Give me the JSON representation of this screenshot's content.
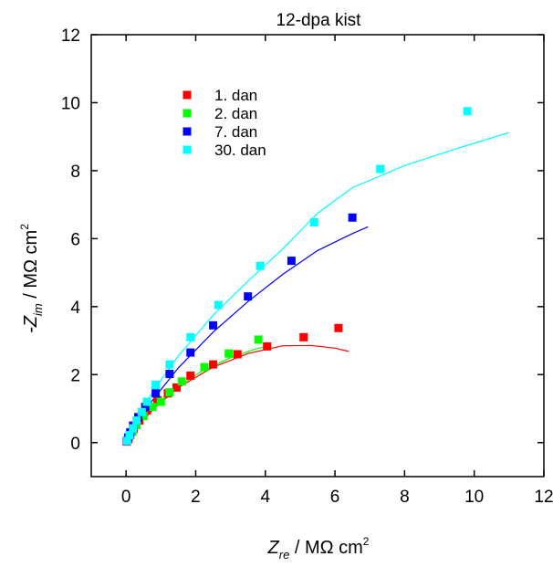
{
  "chart_data": {
    "type": "scatter",
    "title": "12-dpa kist",
    "xlabel": {
      "main": "Z",
      "sub": "re",
      "rest": " / MΩ cm",
      "sup": "2"
    },
    "ylabel": {
      "prefix": "-Z",
      "sub": "im",
      "rest": " / MΩ cm",
      "sup": "2"
    },
    "xlim": [
      -1,
      12
    ],
    "ylim": [
      -1,
      12
    ],
    "xticks": [
      0,
      2,
      4,
      6,
      8,
      10,
      12
    ],
    "yticks": [
      0,
      2,
      4,
      6,
      8,
      10,
      12
    ],
    "legend_position": "top-left",
    "series": [
      {
        "name": "1. dan",
        "color": "#ff0000",
        "points": [
          [
            0.02,
            0.03
          ],
          [
            0.06,
            0.1
          ],
          [
            0.12,
            0.22
          ],
          [
            0.22,
            0.4
          ],
          [
            0.38,
            0.65
          ],
          [
            0.6,
            0.95
          ],
          [
            0.9,
            1.25
          ],
          [
            1.2,
            1.45
          ],
          [
            1.45,
            1.62
          ],
          [
            1.85,
            1.97
          ],
          [
            2.5,
            2.3
          ],
          [
            3.2,
            2.6
          ],
          [
            4.05,
            2.83
          ],
          [
            5.1,
            3.1
          ],
          [
            6.1,
            3.37
          ]
        ],
        "fit": [
          [
            0,
            0
          ],
          [
            0.3,
            0.45
          ],
          [
            0.8,
            1.0
          ],
          [
            1.5,
            1.62
          ],
          [
            2.5,
            2.22
          ],
          [
            3.5,
            2.62
          ],
          [
            4.5,
            2.85
          ],
          [
            5.3,
            2.86
          ],
          [
            6.0,
            2.78
          ],
          [
            6.4,
            2.68
          ]
        ]
      },
      {
        "name": "2. dan",
        "color": "#00ff00",
        "points": [
          [
            0.03,
            0.05
          ],
          [
            0.08,
            0.15
          ],
          [
            0.18,
            0.32
          ],
          [
            0.3,
            0.52
          ],
          [
            0.5,
            0.78
          ],
          [
            0.75,
            1.05
          ],
          [
            1.0,
            1.2
          ],
          [
            1.25,
            1.48
          ],
          [
            1.6,
            1.8
          ],
          [
            2.25,
            2.22
          ],
          [
            2.95,
            2.62
          ],
          [
            3.8,
            3.03
          ]
        ],
        "fit": [
          [
            0,
            0
          ],
          [
            0.3,
            0.48
          ],
          [
            0.8,
            1.05
          ],
          [
            1.5,
            1.65
          ],
          [
            2.2,
            2.12
          ],
          [
            3.0,
            2.5
          ],
          [
            3.7,
            2.75
          ],
          [
            4.1,
            2.85
          ]
        ]
      },
      {
        "name": "7. dan",
        "color": "#0000ff",
        "points": [
          [
            0.02,
            0.05
          ],
          [
            0.06,
            0.15
          ],
          [
            0.12,
            0.3
          ],
          [
            0.2,
            0.5
          ],
          [
            0.35,
            0.75
          ],
          [
            0.55,
            1.05
          ],
          [
            0.85,
            1.45
          ],
          [
            1.25,
            2.02
          ],
          [
            1.85,
            2.65
          ],
          [
            2.5,
            3.45
          ],
          [
            3.5,
            4.3
          ],
          [
            4.75,
            5.35
          ],
          [
            6.5,
            6.62
          ]
        ],
        "fit": [
          [
            0,
            0
          ],
          [
            0.3,
            0.6
          ],
          [
            0.8,
            1.3
          ],
          [
            1.5,
            2.2
          ],
          [
            2.5,
            3.25
          ],
          [
            3.5,
            4.15
          ],
          [
            4.5,
            4.95
          ],
          [
            5.5,
            5.65
          ],
          [
            6.5,
            6.15
          ],
          [
            6.95,
            6.35
          ]
        ]
      },
      {
        "name": "30. dan",
        "color": "#00ffff",
        "points": [
          [
            0.03,
            0.05
          ],
          [
            0.1,
            0.22
          ],
          [
            0.2,
            0.42
          ],
          [
            0.3,
            0.65
          ],
          [
            0.45,
            0.9
          ],
          [
            0.6,
            1.2
          ],
          [
            0.85,
            1.7
          ],
          [
            1.25,
            2.3
          ],
          [
            1.85,
            3.1
          ],
          [
            2.65,
            4.05
          ],
          [
            3.85,
            5.2
          ],
          [
            5.4,
            6.48
          ],
          [
            7.3,
            8.05
          ],
          [
            9.8,
            9.75
          ]
        ],
        "fit": [
          [
            0,
            0
          ],
          [
            0.3,
            0.7
          ],
          [
            0.8,
            1.55
          ],
          [
            1.5,
            2.55
          ],
          [
            2.5,
            3.75
          ],
          [
            3.5,
            4.75
          ],
          [
            4.5,
            5.7
          ],
          [
            5.5,
            6.75
          ],
          [
            6.5,
            7.5
          ],
          [
            8.0,
            8.15
          ],
          [
            9.5,
            8.65
          ],
          [
            11.0,
            9.12
          ]
        ]
      }
    ]
  }
}
